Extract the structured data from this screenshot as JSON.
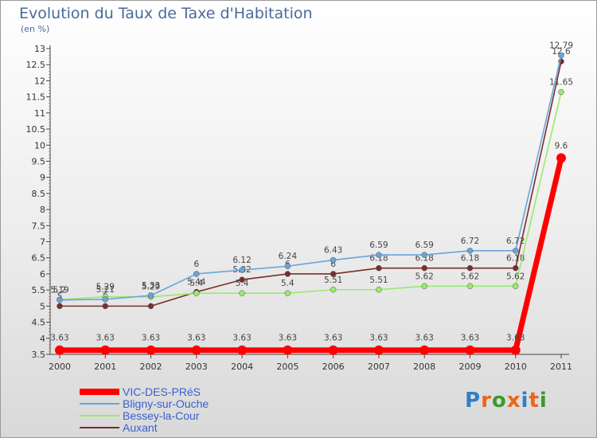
{
  "title": "Evolution du Taux de Taxe d'Habitation",
  "subtitle": "(en %)",
  "logo": "Proxiti",
  "chart_data": {
    "type": "line",
    "x": [
      "2000",
      "2001",
      "2002",
      "2003",
      "2004",
      "2005",
      "2006",
      "2007",
      "2008",
      "2009",
      "2010",
      "2011"
    ],
    "ylim": [
      3.5,
      13
    ],
    "yticks": [
      3.5,
      4,
      4.5,
      5,
      5.5,
      6,
      6.5,
      7,
      7.5,
      8,
      8.5,
      9,
      9.5,
      10,
      10.5,
      11,
      11.5,
      12,
      12.5,
      13
    ],
    "grid": false,
    "legend_position": "bottom-left",
    "series": [
      {
        "name": "VIC-DES-PRéS",
        "color": "#ff0000",
        "values": [
          3.63,
          3.63,
          3.63,
          3.63,
          3.63,
          3.63,
          3.63,
          3.63,
          3.63,
          3.63,
          3.63,
          9.6
        ],
        "labels": [
          "3.63",
          "3.63",
          "3.63",
          "3.63",
          "3.63",
          "3.63",
          "3.63",
          "3.63",
          "3.63",
          "3.63",
          "3.63",
          "9.6"
        ]
      },
      {
        "name": "Bligny-sur-Ouche",
        "color": "#6aa4d8",
        "values": [
          5.19,
          5.21,
          5.33,
          6,
          6.12,
          6.24,
          6.43,
          6.59,
          6.59,
          6.72,
          6.72,
          12.79
        ],
        "labels": [
          "5.19",
          "5.21",
          "5.33",
          "6",
          "6.12",
          "6.24",
          "6.43",
          "6.59",
          "6.59",
          "6.72",
          "6.72",
          "12.79"
        ]
      },
      {
        "name": "Bessey-la-Cour",
        "color": "#99ea6c",
        "values": [
          5.2,
          5.29,
          5.29,
          5.4,
          5.4,
          5.4,
          5.51,
          5.51,
          5.62,
          5.62,
          5.62,
          11.65
        ],
        "labels": [
          "5.2",
          "5.29",
          "5.29",
          "5.4",
          "5.4",
          "5.4",
          "5.51",
          "5.51",
          "5.62",
          "5.62",
          "5.62",
          "11.65"
        ]
      },
      {
        "name": "Auxant",
        "color": "#7a2d2d",
        "values": [
          5,
          5,
          5,
          5.44,
          5.82,
          6,
          6,
          6.18,
          6.18,
          6.18,
          6.18,
          12.6
        ],
        "labels": [
          "5",
          "5",
          "5",
          "5.44",
          "5.82",
          "6",
          "6",
          "6.18",
          "6.18",
          "6.18",
          "6.18",
          "12.6"
        ]
      }
    ]
  }
}
